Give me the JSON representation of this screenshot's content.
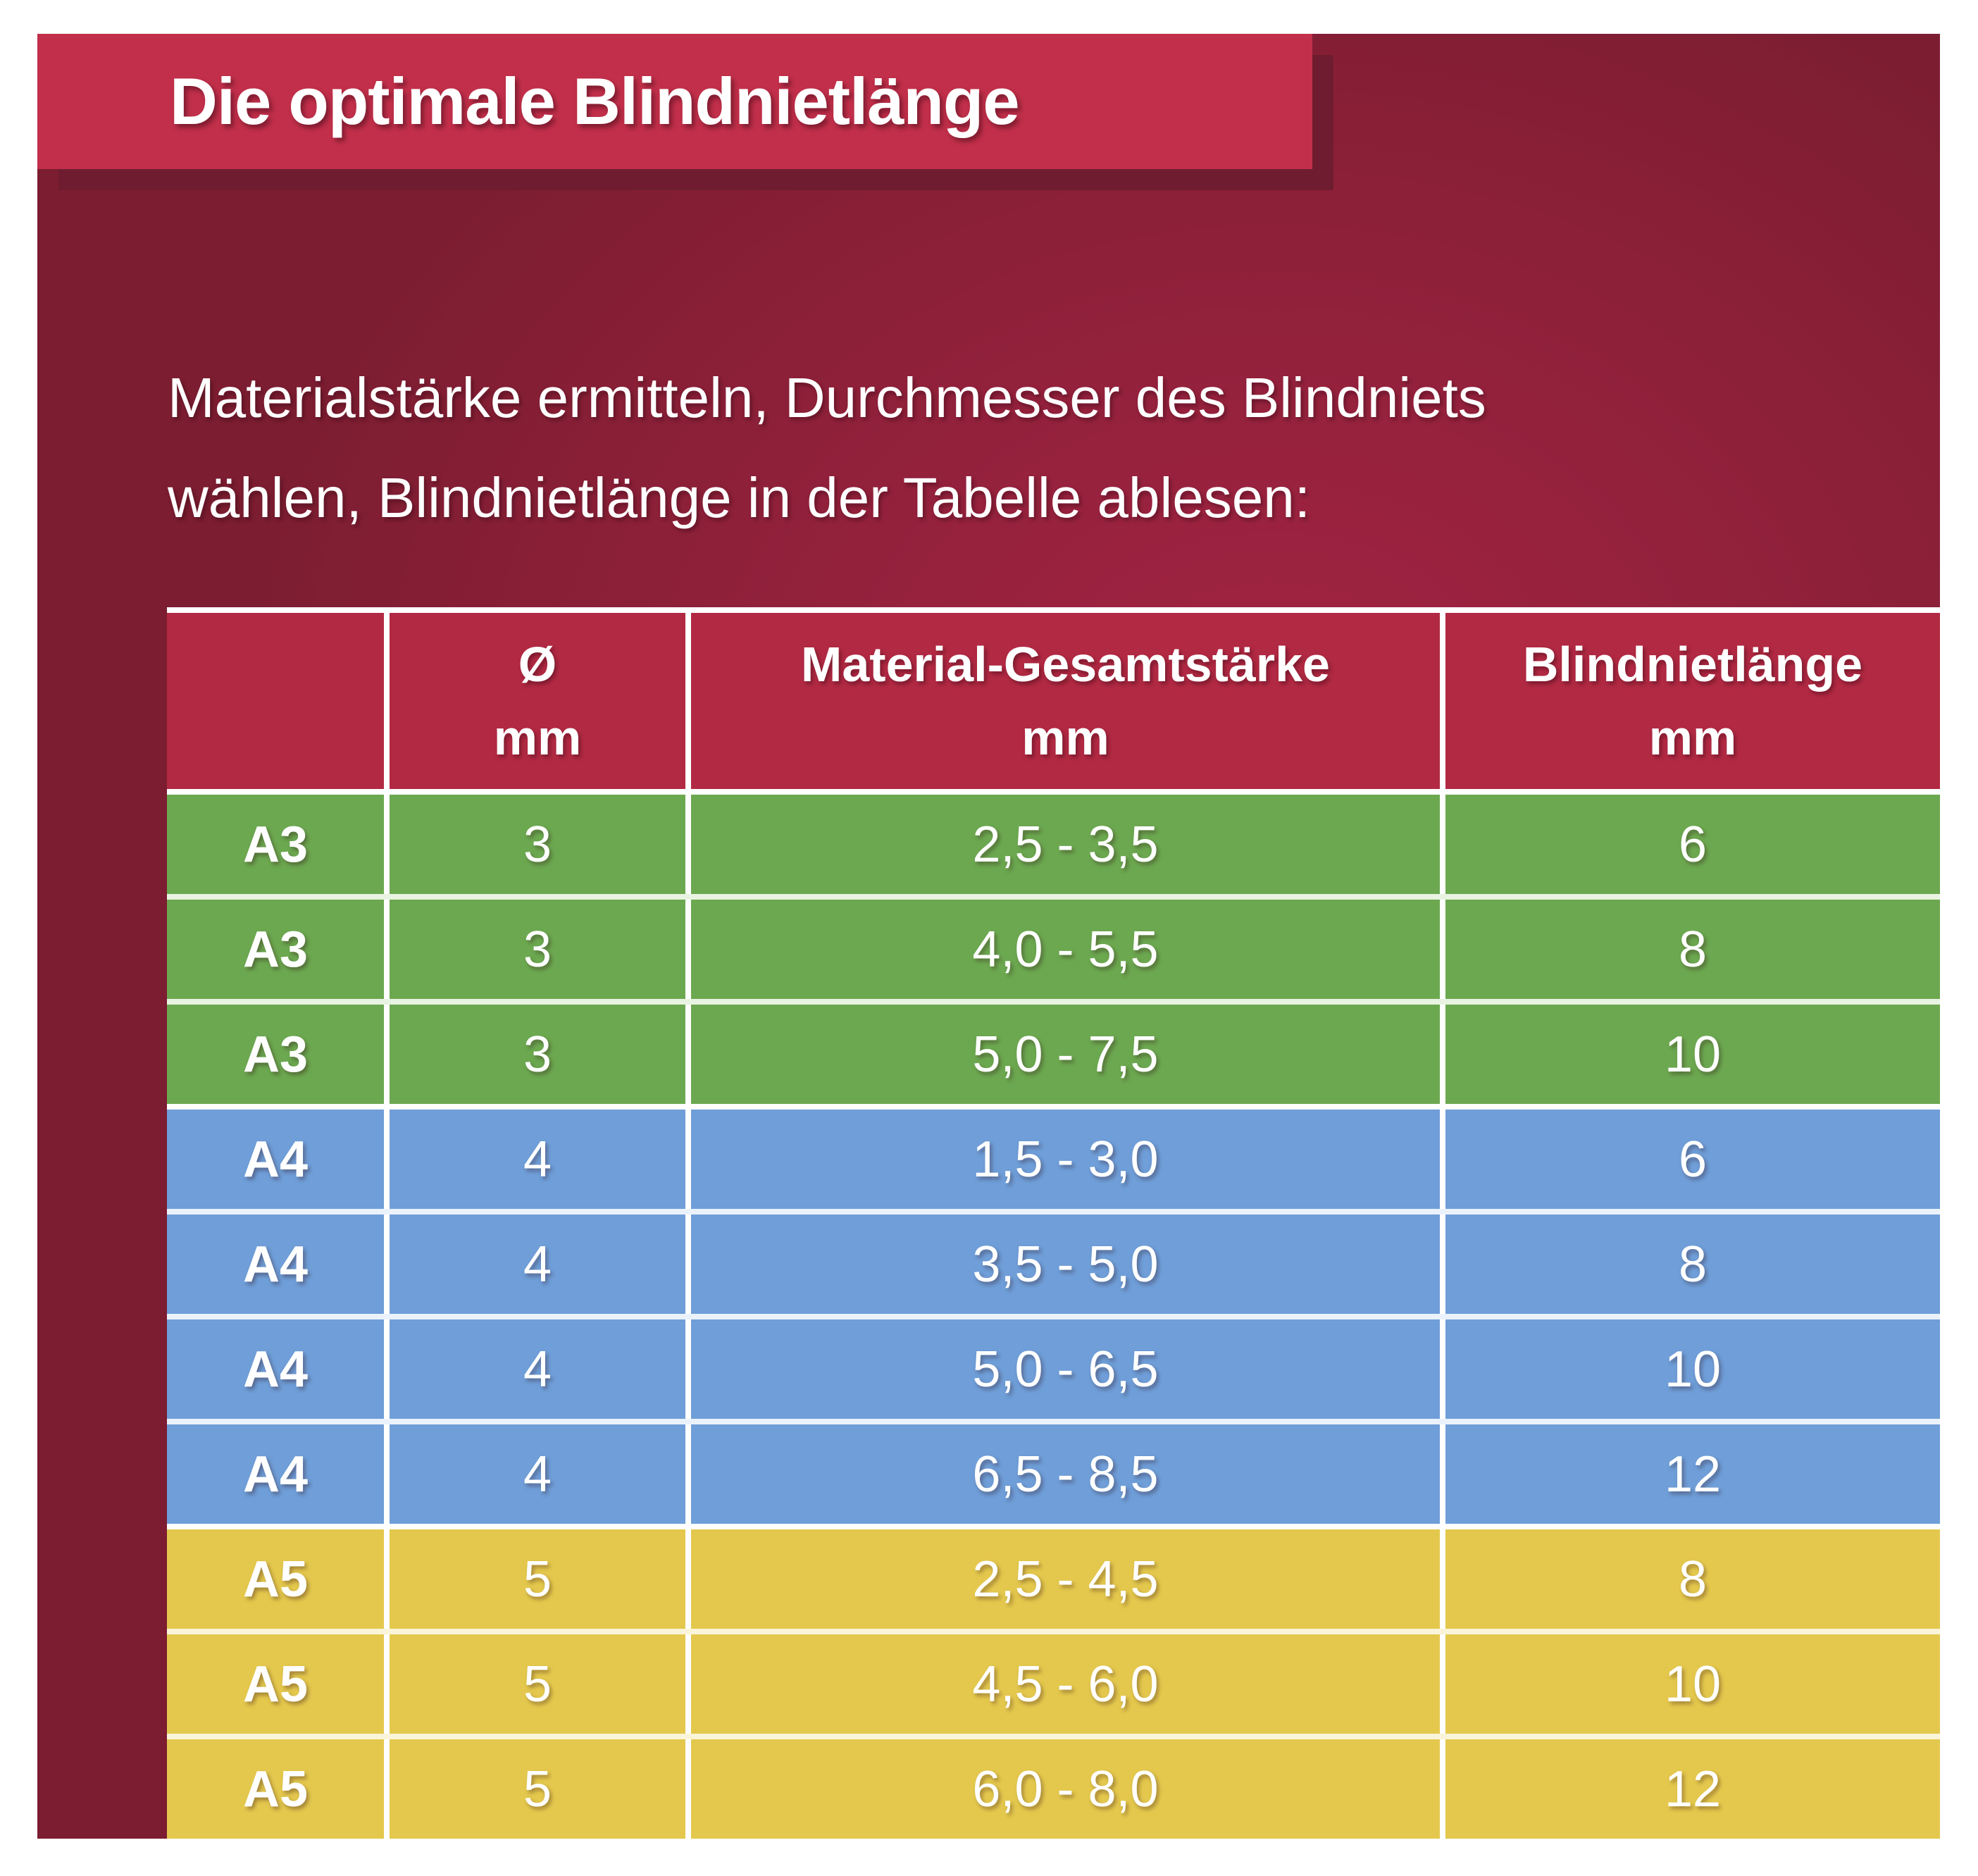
{
  "title_banner": {
    "label": "Die optimale Blindnietlänge"
  },
  "intro": {
    "line1": "Materialstärke ermitteln, Durchmesser des Blindniets",
    "line2": "wählen, Blindnietlänge in der Tabelle ablesen:"
  },
  "colors": {
    "page_background": "#ffffff",
    "banner": "#c22f4a",
    "banner_shadow": "#6f1c30",
    "panel_inner": "#a22443",
    "panel_mid": "#93213c",
    "panel_outer": "#7c1d31",
    "table_header": "#b22943",
    "green": "#6ca850",
    "blue": "#6f9ed8",
    "yellow": "#e4c84d",
    "separator_white": "#ffffff",
    "separator_green": "#e9f3e1",
    "separator_blue": "#ebf2fb",
    "separator_yellow": "#faf4d8",
    "text": "#ffffff"
  },
  "table": {
    "header": {
      "cells": [
        {
          "line1": "",
          "line2": ""
        },
        {
          "line1": "Ø",
          "line2": "mm"
        },
        {
          "line1": "Material-Gesamtstärke",
          "line2": "mm"
        },
        {
          "line1": "Blindnietlänge",
          "line2": "mm"
        }
      ]
    },
    "rows": [
      {
        "label": "A3",
        "diameter": "3",
        "material_range": "2,5 - 3,5",
        "rivet_length": "6",
        "section": "green",
        "separator": "#ffffff"
      },
      {
        "label": "A3",
        "diameter": "3",
        "material_range": "4,0 - 5,5",
        "rivet_length": "8",
        "section": "green",
        "separator": "#e9f3e1"
      },
      {
        "label": "A3",
        "diameter": "3",
        "material_range": "5,0 - 7,5",
        "rivet_length": "10",
        "section": "green",
        "separator": "#e9f3e1"
      },
      {
        "label": "A4",
        "diameter": "4",
        "material_range": "1,5 - 3,0",
        "rivet_length": "6",
        "section": "blue",
        "separator": "#ffffff"
      },
      {
        "label": "A4",
        "diameter": "4",
        "material_range": "3,5 - 5,0",
        "rivet_length": "8",
        "section": "blue",
        "separator": "#ebf2fb"
      },
      {
        "label": "A4",
        "diameter": "4",
        "material_range": "5,0 - 6,5",
        "rivet_length": "10",
        "section": "blue",
        "separator": "#ebf2fb"
      },
      {
        "label": "A4",
        "diameter": "4",
        "material_range": "6,5 - 8,5",
        "rivet_length": "12",
        "section": "blue",
        "separator": "#ebf2fb"
      },
      {
        "label": "A5",
        "diameter": "5",
        "material_range": "2,5 - 4,5",
        "rivet_length": "8",
        "section": "yellow",
        "separator": "#ffffff"
      },
      {
        "label": "A5",
        "diameter": "5",
        "material_range": "4,5 - 6,0",
        "rivet_length": "10",
        "section": "yellow",
        "separator": "#faf4d8"
      },
      {
        "label": "A5",
        "diameter": "5",
        "material_range": "6,0 - 8,0",
        "rivet_length": "12",
        "section": "yellow",
        "separator": "#faf4d8"
      }
    ]
  },
  "chart_data": {
    "type": "table",
    "title": "Die optimale Blindnietlänge",
    "note": "Materialstärke ermitteln, Durchmesser des Blindniets wählen, Blindnietlänge in der Tabelle ablesen:",
    "columns": [
      "",
      "Ø mm",
      "Material-Gesamtstärke mm",
      "Blindnietlänge mm"
    ],
    "rows": [
      [
        "A3",
        "3",
        "2,5 - 3,5",
        "6"
      ],
      [
        "A3",
        "3",
        "4,0 - 5,5",
        "8"
      ],
      [
        "A3",
        "3",
        "5,0 - 7,5",
        "10"
      ],
      [
        "A4",
        "4",
        "1,5 - 3,0",
        "6"
      ],
      [
        "A4",
        "4",
        "3,5 - 5,0",
        "8"
      ],
      [
        "A4",
        "4",
        "5,0 - 6,5",
        "10"
      ],
      [
        "A4",
        "4",
        "6,5 - 8,5",
        "12"
      ],
      [
        "A5",
        "5",
        "2,5 - 4,5",
        "8"
      ],
      [
        "A5",
        "5",
        "4,5 - 6,0",
        "10"
      ],
      [
        "A5",
        "5",
        "6,0 - 8,0",
        "12"
      ]
    ],
    "row_groups": [
      {
        "label": "A3",
        "color": "#6ca850",
        "row_count": 3
      },
      {
        "label": "A4",
        "color": "#6f9ed8",
        "row_count": 4
      },
      {
        "label": "A5",
        "color": "#e4c84d",
        "row_count": 3
      }
    ]
  }
}
